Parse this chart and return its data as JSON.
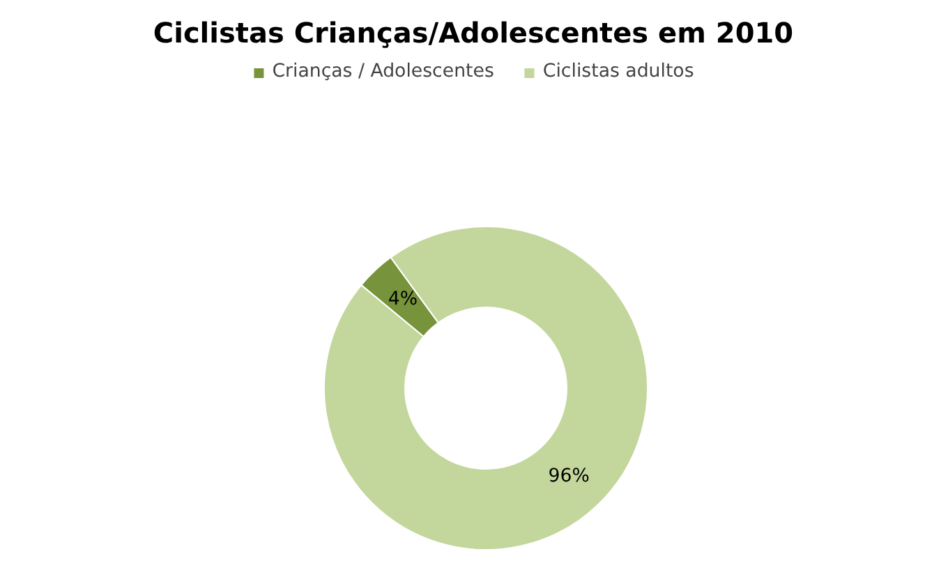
{
  "chart_data": {
    "type": "donut",
    "title": "Ciclistas Crianças/Adolescentes em 2010",
    "categories": [
      "Crianças / Adolescentes",
      "Ciclistas adultos"
    ],
    "values": [
      4,
      96
    ],
    "colors": [
      "#77933c",
      "#c3d69b"
    ],
    "value_labels": [
      "4%",
      "96%"
    ],
    "legend": "top"
  }
}
